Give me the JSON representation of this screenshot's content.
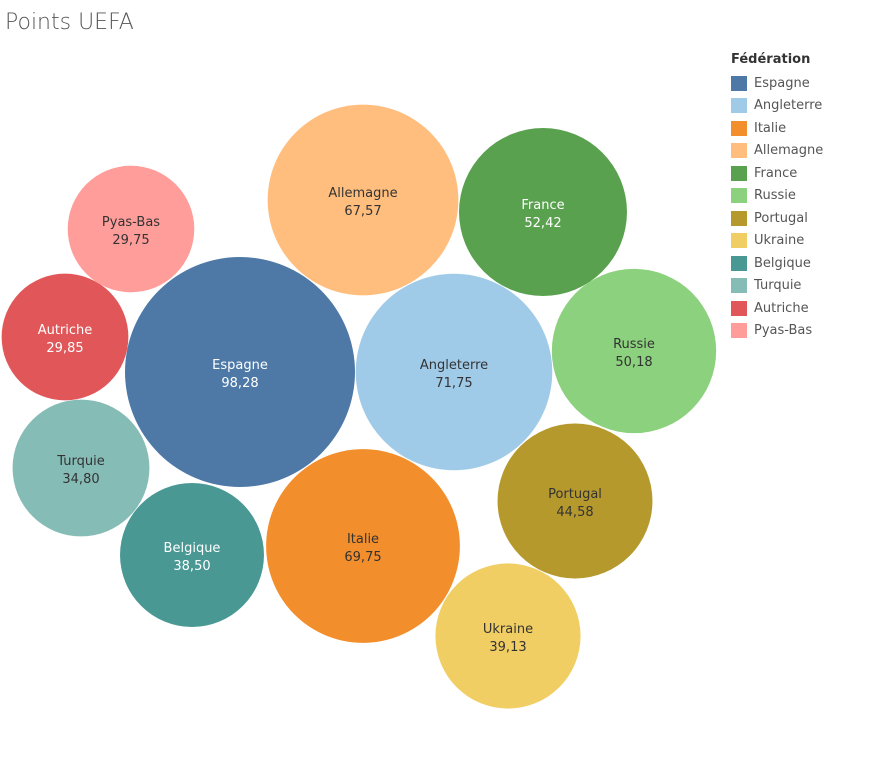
{
  "chart_data": {
    "type": "packed-bubble",
    "title": "Points UEFA",
    "legend_title": "Fédération",
    "legend_position": "right",
    "categories": [
      "Espagne",
      "Angleterre",
      "Italie",
      "Allemagne",
      "France",
      "Russie",
      "Portugal",
      "Ukraine",
      "Belgique",
      "Turquie",
      "Autriche",
      "Pyas-Bas"
    ],
    "values": [
      98.28,
      71.75,
      69.75,
      67.57,
      52.42,
      50.18,
      44.58,
      39.13,
      38.5,
      34.8,
      29.85,
      29.75
    ],
    "value_labels": [
      "98,28",
      "71,75",
      "69,75",
      "67,57",
      "52,42",
      "50,18",
      "44,58",
      "39,13",
      "38,50",
      "34,80",
      "29,85",
      "29,75"
    ],
    "colors": [
      "#4e79a7",
      "#a0cbe8",
      "#f28e2b",
      "#ffbe7d",
      "#59a14f",
      "#8cd17d",
      "#b6992d",
      "#f1ce63",
      "#499894",
      "#86bcb6",
      "#e15759",
      "#ff9d9a"
    ]
  }
}
